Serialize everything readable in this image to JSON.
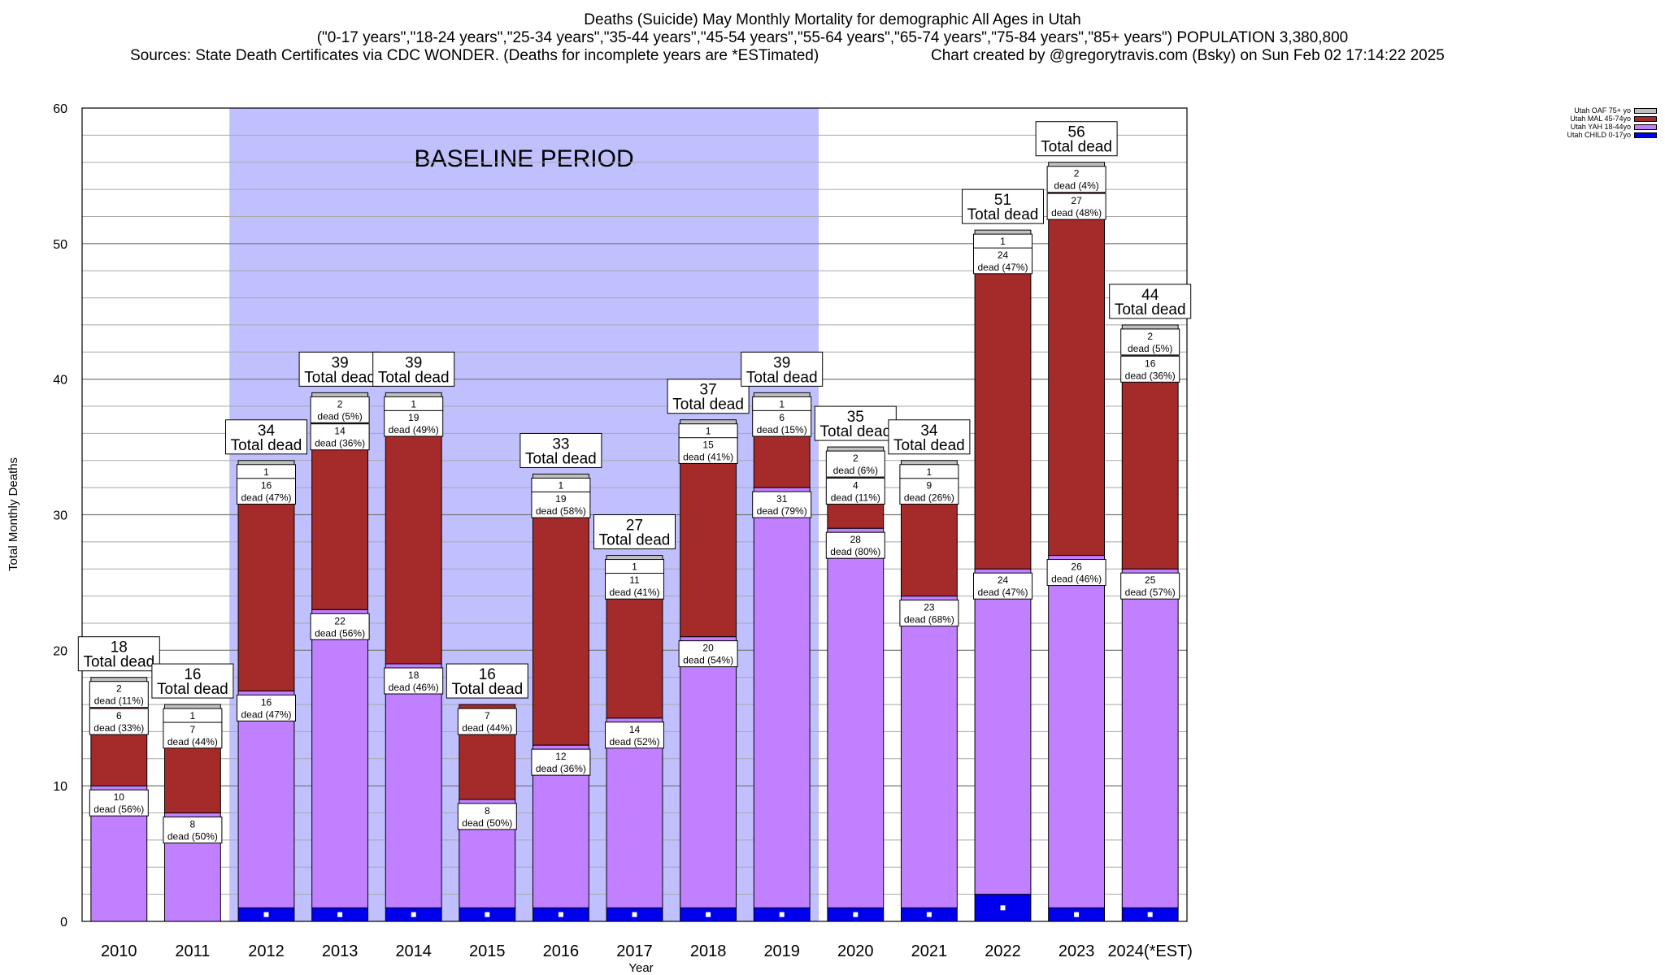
{
  "title": {
    "line1": "Deaths (Suicide) May Monthly Mortality for demographic All Ages in Utah",
    "line2": "(\"0-17 years\",\"18-24 years\",\"25-34 years\",\"35-44 years\",\"45-54 years\",\"55-64 years\",\"65-74 years\",\"75-84 years\",\"85+ years\") POPULATION 3,380,800",
    "line3a": "Sources: State Death Certificates via CDC WONDER. (Deaths for incomplete years are *ESTimated)",
    "line3b": "Chart created by @gregorytravis.com (Bsky) on Sun Feb 02 17:14:22 2025"
  },
  "colors": {
    "child": "#0000ee",
    "yah": "#c080ff",
    "mal": "#a52a2a",
    "oaf": "#c0c0c0",
    "baseline": "#c0c0ff"
  },
  "chart_data": {
    "type": "bar",
    "stacked": true,
    "xlabel": "Year",
    "ylabel": "Total Monthly Deaths",
    "ylim": [
      0,
      60
    ],
    "yticks": [
      0,
      10,
      20,
      30,
      40,
      50,
      60
    ],
    "grid": true,
    "legend_position": "top-right",
    "annotation": "BASELINE PERIOD",
    "baseline_range": [
      "2012",
      "2019"
    ],
    "categories": [
      "2010",
      "2011",
      "2012",
      "2013",
      "2014",
      "2015",
      "2016",
      "2017",
      "2018",
      "2019",
      "2020",
      "2021",
      "2022",
      "2023",
      "2024(*EST)"
    ],
    "series": [
      {
        "name": "Utah CHILD 0-17yo",
        "key": "child",
        "values": [
          0,
          0,
          1,
          1,
          1,
          1,
          1,
          1,
          1,
          1,
          1,
          1,
          2,
          1,
          1
        ]
      },
      {
        "name": "Utah YAH 18-44yo",
        "key": "yah",
        "values": [
          10,
          8,
          16,
          22,
          18,
          8,
          12,
          14,
          20,
          31,
          28,
          23,
          24,
          26,
          25
        ],
        "labels": [
          "dead (56%)",
          "dead (50%)",
          "dead (47%)",
          "dead (56%)",
          "dead (46%)",
          "dead (50%)",
          "dead (36%)",
          "dead (52%)",
          "dead (54%)",
          "dead (79%)",
          "dead (80%)",
          "dead (68%)",
          "dead (47%)",
          "dead (46%)",
          "dead (57%)"
        ]
      },
      {
        "name": "Utah MAL 45-74yo",
        "key": "mal",
        "values": [
          6,
          7,
          16,
          14,
          19,
          7,
          19,
          11,
          15,
          6,
          4,
          9,
          24,
          27,
          16
        ],
        "labels": [
          "dead (33%)",
          "dead (44%)",
          "dead (47%)",
          "dead (36%)",
          "dead (49%)",
          "dead (44%)",
          "dead (58%)",
          "dead (41%)",
          "dead (41%)",
          "dead (15%)",
          "dead (11%)",
          "dead (26%)",
          "dead (47%)",
          "dead (48%)",
          "dead (36%)"
        ]
      },
      {
        "name": "Utah OAF 75+ yo",
        "key": "oaf",
        "values": [
          2,
          1,
          1,
          2,
          1,
          0,
          1,
          1,
          1,
          1,
          2,
          1,
          1,
          2,
          2
        ],
        "labels": [
          "dead (11%)",
          "",
          "",
          "dead (5%)",
          "",
          "",
          "",
          "",
          "",
          "",
          "dead (6%)",
          "",
          "",
          "dead (4%)",
          "dead (5%)"
        ]
      }
    ],
    "totals": [
      18,
      16,
      34,
      39,
      39,
      16,
      33,
      27,
      37,
      39,
      35,
      34,
      51,
      56,
      44
    ],
    "total_label": "Total dead",
    "legend": [
      "Utah OAF 75+ yo",
      "Utah MAL 45-74yo",
      "Utah YAH 18-44yo",
      "Utah CHILD 0-17yo"
    ]
  }
}
